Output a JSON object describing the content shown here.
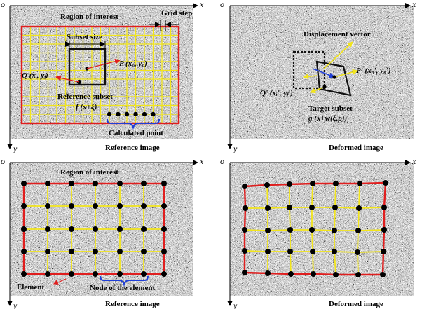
{
  "colors": {
    "roi": "#e01e1e",
    "grid": "#f2e51c",
    "subset": "#111111",
    "point": "#000000",
    "vector_red": "#e01e1e",
    "vector_blue": "#1f3fd8",
    "vector_yellow": "#f2e51c",
    "bracket": "#1f3fd8"
  },
  "axes": {
    "origin": "o",
    "x": "x",
    "y": "y"
  },
  "panel_tl": {
    "caption": "Reference image",
    "roi_label": "Region of interest",
    "grid_step_label": "Grid step",
    "subset_size_label": "Subset size",
    "p_label": "P (x₀, y₀)",
    "q_label": "Q (xᵢ, yⱼ)",
    "ref_subset_label": "Reference subset",
    "f_label": "f (x+ξ)",
    "calc_point_label": "Calculated point"
  },
  "panel_tr": {
    "caption": "Deformed image",
    "disp_label": "Displacement vector",
    "p_label": "P' (x₀', y₀')",
    "q_label": "Q' (xᵢ', yⱼ')",
    "target_label": "Target subset",
    "g_label": "g (x+w(ξ,p))"
  },
  "panel_bl": {
    "caption": "Reference image",
    "roi_label": "Region of interest",
    "element_label": "Element",
    "node_label": "Node of the element"
  },
  "panel_br": {
    "caption": "Deformed image"
  }
}
